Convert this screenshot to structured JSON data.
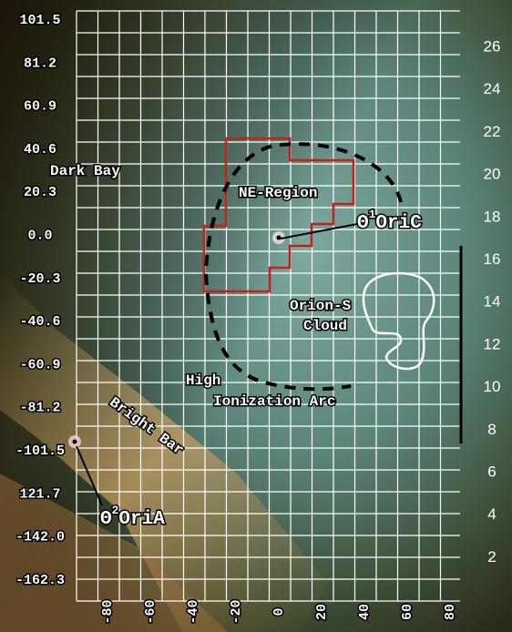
{
  "left_axis": [
    "101.5",
    "81.2",
    "60.9",
    "40.6",
    "20.3",
    "0.0",
    "-20.3",
    "-40.6",
    "-60.9",
    "-81.2",
    "-101.5",
    "121.7",
    "-142.0",
    "-162.3"
  ],
  "right_axis": [
    "26",
    "24",
    "22",
    "20",
    "18",
    "16",
    "14",
    "12",
    "10",
    "8",
    "6",
    "4",
    "2"
  ],
  "bottom_axis": [
    "-80",
    "-60",
    "-40",
    "-20",
    "0",
    "20",
    "40",
    "60",
    "80"
  ],
  "annotations": {
    "dark_bay": "Dark Bay",
    "ne_region": "NE-Region",
    "orion_s": [
      "Orion-S",
      "Cloud"
    ],
    "high_ionization": [
      "High",
      "Ionization Arc"
    ],
    "bright_bar": "Bright Bar",
    "theta1": {
      "symbol": "Θ",
      "sup": "1",
      "name": "OriC"
    },
    "theta2": {
      "symbol": "Θ",
      "sup": "2",
      "name": "OriA"
    }
  }
}
